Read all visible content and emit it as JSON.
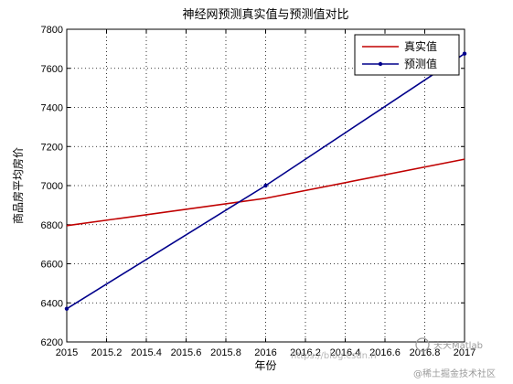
{
  "chart_data": {
    "type": "line",
    "title": "神经网预测真实值与预测值对比",
    "xlabel": "年份",
    "ylabel": "商品房平均房价",
    "xlim": [
      2015,
      2017
    ],
    "ylim": [
      6200,
      7800
    ],
    "x_ticks": [
      "2015",
      "2015.2",
      "2015.4",
      "2015.6",
      "2015.8",
      "2016",
      "2016.2",
      "2016.4",
      "2016.6",
      "2016.8",
      "2017"
    ],
    "y_ticks": [
      "6200",
      "6400",
      "6600",
      "6800",
      "7000",
      "7200",
      "7400",
      "7600",
      "7800"
    ],
    "grid": true,
    "legend_position": "top-right",
    "x": [
      2015,
      2016,
      2017
    ],
    "series": [
      {
        "name": "真实值",
        "color": "#c00000",
        "marker": "none",
        "values": [
          6795,
          6935,
          7135
        ]
      },
      {
        "name": "预测值",
        "color": "#00008b",
        "marker": "dot",
        "values": [
          6370,
          7000,
          7675
        ]
      }
    ]
  },
  "watermark": {
    "brand": "天天Matlab",
    "url_text": "https://blog.csdn.n",
    "community": "@稀土掘金技术社区"
  }
}
